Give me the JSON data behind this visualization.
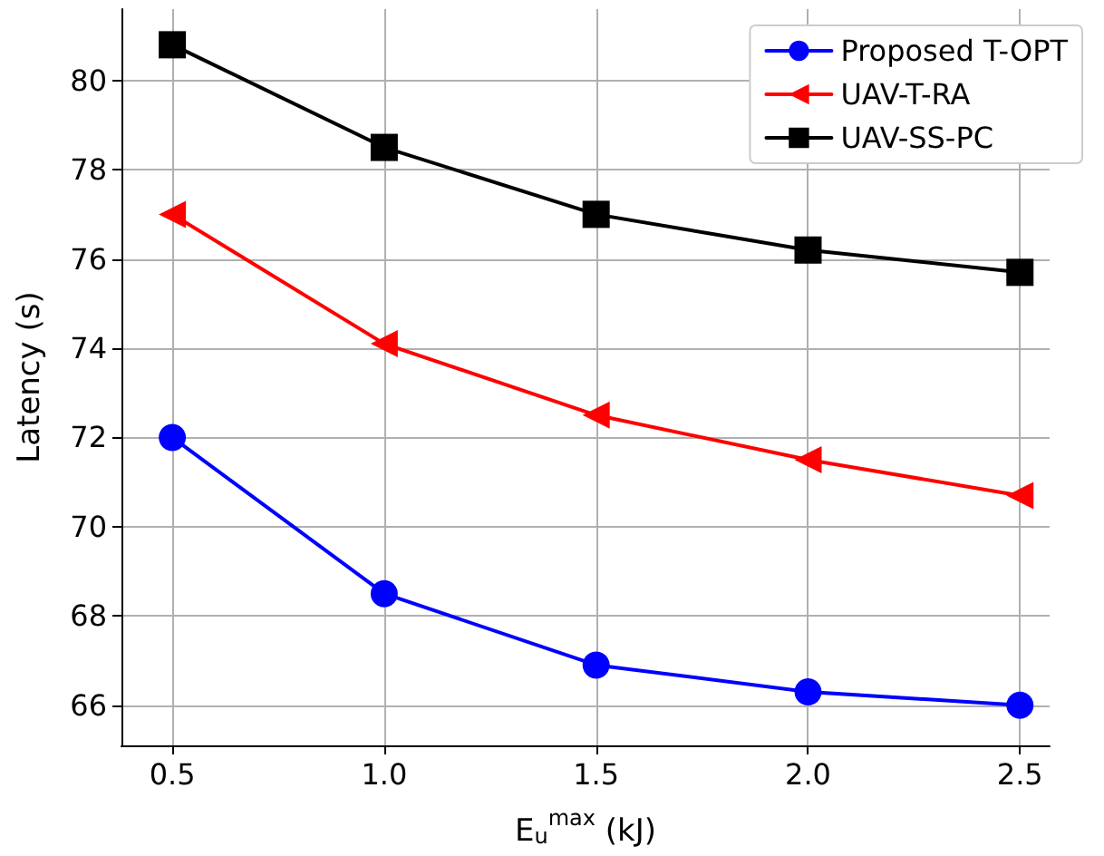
{
  "chart_data": {
    "type": "line",
    "xlabel": "E$_{u}$$^{max}$ (kJ)",
    "ylabel": "Latency (s)",
    "x": [
      0.5,
      1.0,
      1.5,
      2.0,
      2.5
    ],
    "series": [
      {
        "name": "Proposed T-OPT",
        "color": "#0000ff",
        "marker": "circle",
        "values": [
          72.0,
          68.5,
          66.9,
          66.3,
          66.0
        ]
      },
      {
        "name": "UAV-T-RA",
        "color": "#ff0000",
        "marker": "triangle",
        "values": [
          77.0,
          74.1,
          72.5,
          71.5,
          70.7
        ]
      },
      {
        "name": "UAV-SS-PC",
        "color": "#000000",
        "marker": "square",
        "values": [
          80.8,
          78.5,
          77.0,
          76.2,
          75.7
        ]
      }
    ],
    "xlim": [
      0.38,
      2.57
    ],
    "ylim": [
      65.1,
      81.6
    ],
    "xticks": [
      {
        "value": 0.5,
        "label": "0.5"
      },
      {
        "value": 1.0,
        "label": "1.0"
      },
      {
        "value": 1.5,
        "label": "1.5"
      },
      {
        "value": 2.0,
        "label": "2.0"
      },
      {
        "value": 2.5,
        "label": "2.5"
      }
    ],
    "yticks": [
      66,
      68,
      70,
      72,
      74,
      76,
      78,
      80
    ],
    "grid": true,
    "legend": "top right",
    "line_style": "solid"
  }
}
